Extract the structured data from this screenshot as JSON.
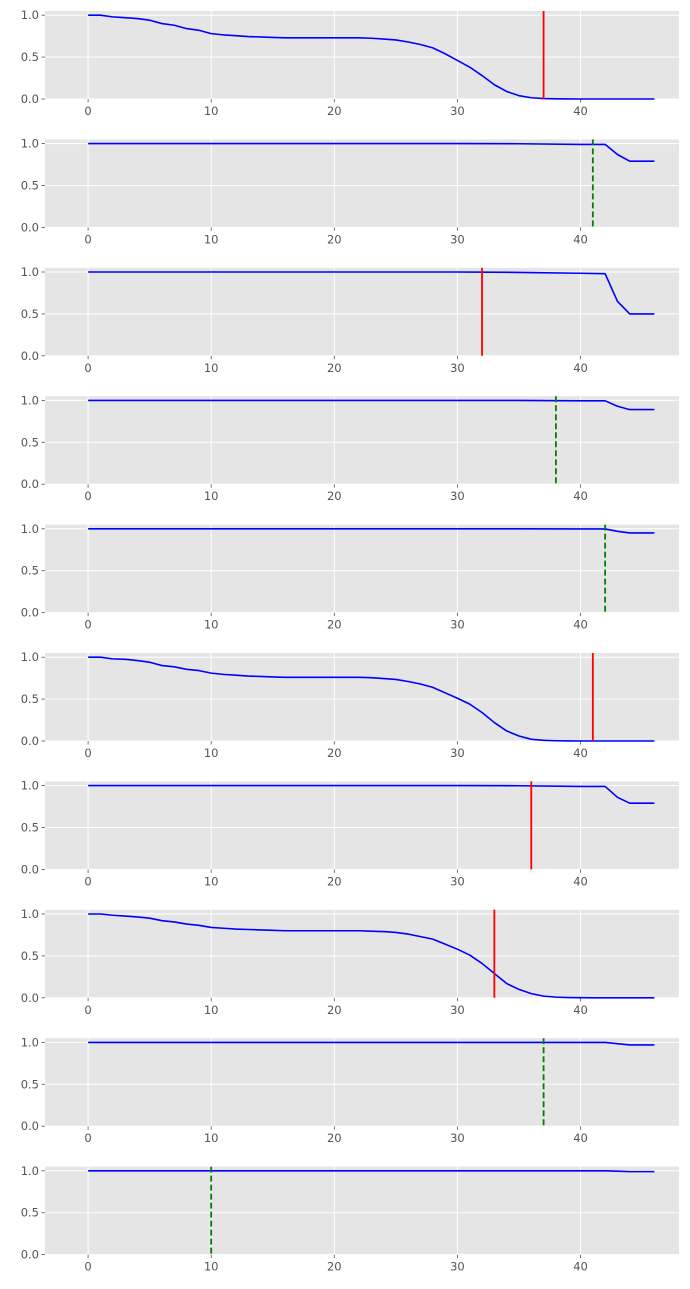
{
  "style": {
    "panel_background": "#e5e5e5",
    "grid_color": "#ffffff",
    "tick_label_color": "#555555",
    "curve_color": "#0000ff",
    "solid_marker_color": "#ff0000",
    "dashed_marker_color": "#008000"
  },
  "chart_data": [
    {
      "type": "line",
      "grid": true,
      "xlim": [
        -3.5,
        48
      ],
      "ylim": [
        0,
        1.05
      ],
      "x_ticks": [
        0,
        10,
        20,
        30,
        40
      ],
      "y_ticks": [
        0.0,
        0.5,
        1.0
      ],
      "x_tick_labels": [
        "0",
        "10",
        "20",
        "30",
        "40"
      ],
      "y_tick_labels": [
        "0.0",
        "0.5",
        "1.0"
      ],
      "series": [
        {
          "x": [
            0,
            1,
            2,
            3,
            4,
            5,
            6,
            7,
            8,
            9,
            10,
            11,
            12,
            13,
            14,
            15,
            16,
            17,
            18,
            19,
            20,
            21,
            22,
            23,
            24,
            25,
            26,
            27,
            28,
            29,
            30,
            31,
            32,
            33,
            34,
            35,
            36,
            37,
            38,
            39,
            40,
            41,
            42,
            43,
            44,
            45,
            46
          ],
          "y": [
            1.0,
            1.0,
            0.98,
            0.97,
            0.96,
            0.94,
            0.9,
            0.88,
            0.84,
            0.82,
            0.78,
            0.765,
            0.755,
            0.745,
            0.74,
            0.735,
            0.73,
            0.73,
            0.73,
            0.73,
            0.73,
            0.73,
            0.73,
            0.725,
            0.715,
            0.705,
            0.68,
            0.65,
            0.61,
            0.54,
            0.46,
            0.38,
            0.28,
            0.17,
            0.09,
            0.04,
            0.015,
            0.005,
            0.002,
            0.001,
            0,
            0,
            0,
            0,
            0,
            0,
            0
          ]
        }
      ],
      "marker": {
        "x": 37,
        "style": "solid"
      }
    },
    {
      "type": "line",
      "grid": true,
      "xlim": [
        -3.5,
        48
      ],
      "ylim": [
        0,
        1.05
      ],
      "x_ticks": [
        0,
        10,
        20,
        30,
        40
      ],
      "y_ticks": [
        0.0,
        0.5,
        1.0
      ],
      "x_tick_labels": [
        "0",
        "10",
        "20",
        "30",
        "40"
      ],
      "y_tick_labels": [
        "0.0",
        "0.5",
        "1.0"
      ],
      "series": [
        {
          "x": [
            0,
            10,
            20,
            30,
            35,
            40,
            42,
            43,
            44,
            45,
            46
          ],
          "y": [
            1.0,
            1.0,
            1.0,
            1.0,
            0.998,
            0.99,
            0.99,
            0.87,
            0.79,
            0.79,
            0.79
          ]
        }
      ],
      "marker": {
        "x": 41,
        "style": "dashed"
      }
    },
    {
      "type": "line",
      "grid": true,
      "xlim": [
        -3.5,
        48
      ],
      "ylim": [
        0,
        1.05
      ],
      "x_ticks": [
        0,
        10,
        20,
        30,
        40
      ],
      "y_ticks": [
        0.0,
        0.5,
        1.0
      ],
      "x_tick_labels": [
        "0",
        "10",
        "20",
        "30",
        "40"
      ],
      "y_tick_labels": [
        "0.0",
        "0.5",
        "1.0"
      ],
      "series": [
        {
          "x": [
            0,
            10,
            20,
            30,
            35,
            40,
            42,
            43,
            44,
            45,
            46
          ],
          "y": [
            1.0,
            1.0,
            1.0,
            1.0,
            0.995,
            0.985,
            0.98,
            0.65,
            0.5,
            0.5,
            0.5
          ]
        }
      ],
      "marker": {
        "x": 32,
        "style": "solid"
      }
    },
    {
      "type": "line",
      "grid": true,
      "xlim": [
        -3.5,
        48
      ],
      "ylim": [
        0,
        1.05
      ],
      "x_ticks": [
        0,
        10,
        20,
        30,
        40
      ],
      "y_ticks": [
        0.0,
        0.5,
        1.0
      ],
      "x_tick_labels": [
        "0",
        "10",
        "20",
        "30",
        "40"
      ],
      "y_tick_labels": [
        "0.0",
        "0.5",
        "1.0"
      ],
      "series": [
        {
          "x": [
            0,
            10,
            20,
            30,
            35,
            40,
            42,
            43,
            44,
            45,
            46
          ],
          "y": [
            1.0,
            1.0,
            1.0,
            1.0,
            0.999,
            0.995,
            0.995,
            0.93,
            0.89,
            0.89,
            0.89
          ]
        }
      ],
      "marker": {
        "x": 38,
        "style": "dashed"
      }
    },
    {
      "type": "line",
      "grid": true,
      "xlim": [
        -3.5,
        48
      ],
      "ylim": [
        0,
        1.05
      ],
      "x_ticks": [
        0,
        10,
        20,
        30,
        40
      ],
      "y_ticks": [
        0.0,
        0.5,
        1.0
      ],
      "x_tick_labels": [
        "0",
        "10",
        "20",
        "30",
        "40"
      ],
      "y_tick_labels": [
        "0.0",
        "0.5",
        "1.0"
      ],
      "series": [
        {
          "x": [
            0,
            10,
            20,
            30,
            35,
            40,
            42,
            43,
            44,
            45,
            46
          ],
          "y": [
            1.0,
            1.0,
            1.0,
            1.0,
            1.0,
            0.998,
            0.998,
            0.97,
            0.95,
            0.95,
            0.95
          ]
        }
      ],
      "marker": {
        "x": 42,
        "style": "dashed"
      }
    },
    {
      "type": "line",
      "grid": true,
      "xlim": [
        -3.5,
        48
      ],
      "ylim": [
        0,
        1.05
      ],
      "x_ticks": [
        0,
        10,
        20,
        30,
        40
      ],
      "y_ticks": [
        0.0,
        0.5,
        1.0
      ],
      "x_tick_labels": [
        "0",
        "10",
        "20",
        "30",
        "40"
      ],
      "y_tick_labels": [
        "0.0",
        "0.5",
        "1.0"
      ],
      "series": [
        {
          "x": [
            0,
            1,
            2,
            3,
            4,
            5,
            6,
            7,
            8,
            9,
            10,
            11,
            12,
            13,
            14,
            15,
            16,
            17,
            18,
            19,
            20,
            21,
            22,
            23,
            24,
            25,
            26,
            27,
            28,
            29,
            30,
            31,
            32,
            33,
            34,
            35,
            36,
            37,
            38,
            39,
            40,
            41,
            42,
            43,
            44,
            45,
            46
          ],
          "y": [
            1.0,
            1.0,
            0.98,
            0.975,
            0.96,
            0.94,
            0.9,
            0.885,
            0.855,
            0.84,
            0.81,
            0.795,
            0.785,
            0.775,
            0.77,
            0.765,
            0.76,
            0.76,
            0.76,
            0.76,
            0.76,
            0.76,
            0.76,
            0.755,
            0.745,
            0.735,
            0.71,
            0.68,
            0.64,
            0.575,
            0.51,
            0.44,
            0.34,
            0.22,
            0.12,
            0.06,
            0.02,
            0.008,
            0.003,
            0.001,
            0,
            0,
            0,
            0,
            0,
            0,
            0
          ]
        }
      ],
      "marker": {
        "x": 41,
        "style": "solid"
      }
    },
    {
      "type": "line",
      "grid": true,
      "xlim": [
        -3.5,
        48
      ],
      "ylim": [
        0,
        1.05
      ],
      "x_ticks": [
        0,
        10,
        20,
        30,
        40
      ],
      "y_ticks": [
        0.0,
        0.5,
        1.0
      ],
      "x_tick_labels": [
        "0",
        "10",
        "20",
        "30",
        "40"
      ],
      "y_tick_labels": [
        "0.0",
        "0.5",
        "1.0"
      ],
      "series": [
        {
          "x": [
            0,
            10,
            20,
            30,
            35,
            40,
            42,
            43,
            44,
            45,
            46
          ],
          "y": [
            1.0,
            1.0,
            1.0,
            1.0,
            0.998,
            0.99,
            0.99,
            0.86,
            0.79,
            0.79,
            0.79
          ]
        }
      ],
      "marker": {
        "x": 36,
        "style": "solid"
      }
    },
    {
      "type": "line",
      "grid": true,
      "xlim": [
        -3.5,
        48
      ],
      "ylim": [
        0,
        1.05
      ],
      "x_ticks": [
        0,
        10,
        20,
        30,
        40
      ],
      "y_ticks": [
        0.0,
        0.5,
        1.0
      ],
      "x_tick_labels": [
        "0",
        "10",
        "20",
        "30",
        "40"
      ],
      "y_tick_labels": [
        "0.0",
        "0.5",
        "1.0"
      ],
      "series": [
        {
          "x": [
            0,
            1,
            2,
            3,
            4,
            5,
            6,
            7,
            8,
            9,
            10,
            11,
            12,
            13,
            14,
            15,
            16,
            17,
            18,
            19,
            20,
            21,
            22,
            23,
            24,
            25,
            26,
            27,
            28,
            29,
            30,
            31,
            32,
            33,
            34,
            35,
            36,
            37,
            38,
            39,
            40,
            41,
            42,
            43,
            44,
            45,
            46
          ],
          "y": [
            1.0,
            1.0,
            0.985,
            0.975,
            0.965,
            0.95,
            0.92,
            0.905,
            0.88,
            0.865,
            0.84,
            0.83,
            0.82,
            0.815,
            0.81,
            0.805,
            0.8,
            0.8,
            0.8,
            0.8,
            0.8,
            0.8,
            0.8,
            0.795,
            0.79,
            0.78,
            0.76,
            0.73,
            0.7,
            0.64,
            0.58,
            0.51,
            0.41,
            0.29,
            0.17,
            0.1,
            0.05,
            0.02,
            0.008,
            0.003,
            0.001,
            0,
            0,
            0,
            0,
            0,
            0
          ]
        }
      ],
      "marker": {
        "x": 33,
        "style": "solid"
      }
    },
    {
      "type": "line",
      "grid": true,
      "xlim": [
        -3.5,
        48
      ],
      "ylim": [
        0,
        1.05
      ],
      "x_ticks": [
        0,
        10,
        20,
        30,
        40
      ],
      "y_ticks": [
        0.0,
        0.5,
        1.0
      ],
      "x_tick_labels": [
        "0",
        "10",
        "20",
        "30",
        "40"
      ],
      "y_tick_labels": [
        "0.0",
        "0.5",
        "1.0"
      ],
      "series": [
        {
          "x": [
            0,
            10,
            20,
            30,
            35,
            40,
            42,
            43,
            44,
            45,
            46
          ],
          "y": [
            1.0,
            1.0,
            1.0,
            1.0,
            1.0,
            0.999,
            0.999,
            0.985,
            0.97,
            0.97,
            0.97
          ]
        }
      ],
      "marker": {
        "x": 37,
        "style": "dashed"
      }
    },
    {
      "type": "line",
      "grid": true,
      "xlim": [
        -3.5,
        48
      ],
      "ylim": [
        0,
        1.05
      ],
      "x_ticks": [
        0,
        10,
        20,
        30,
        40
      ],
      "y_ticks": [
        0.0,
        0.5,
        1.0
      ],
      "x_tick_labels": [
        "0",
        "10",
        "20",
        "30",
        "40"
      ],
      "y_tick_labels": [
        "0.0",
        "0.5",
        "1.0"
      ],
      "series": [
        {
          "x": [
            0,
            10,
            20,
            30,
            35,
            40,
            42,
            43,
            44,
            45,
            46
          ],
          "y": [
            1.0,
            1.0,
            1.0,
            1.0,
            1.0,
            1.0,
            1.0,
            0.995,
            0.99,
            0.99,
            0.99
          ]
        }
      ],
      "marker": {
        "x": 10,
        "style": "dashed"
      }
    }
  ]
}
